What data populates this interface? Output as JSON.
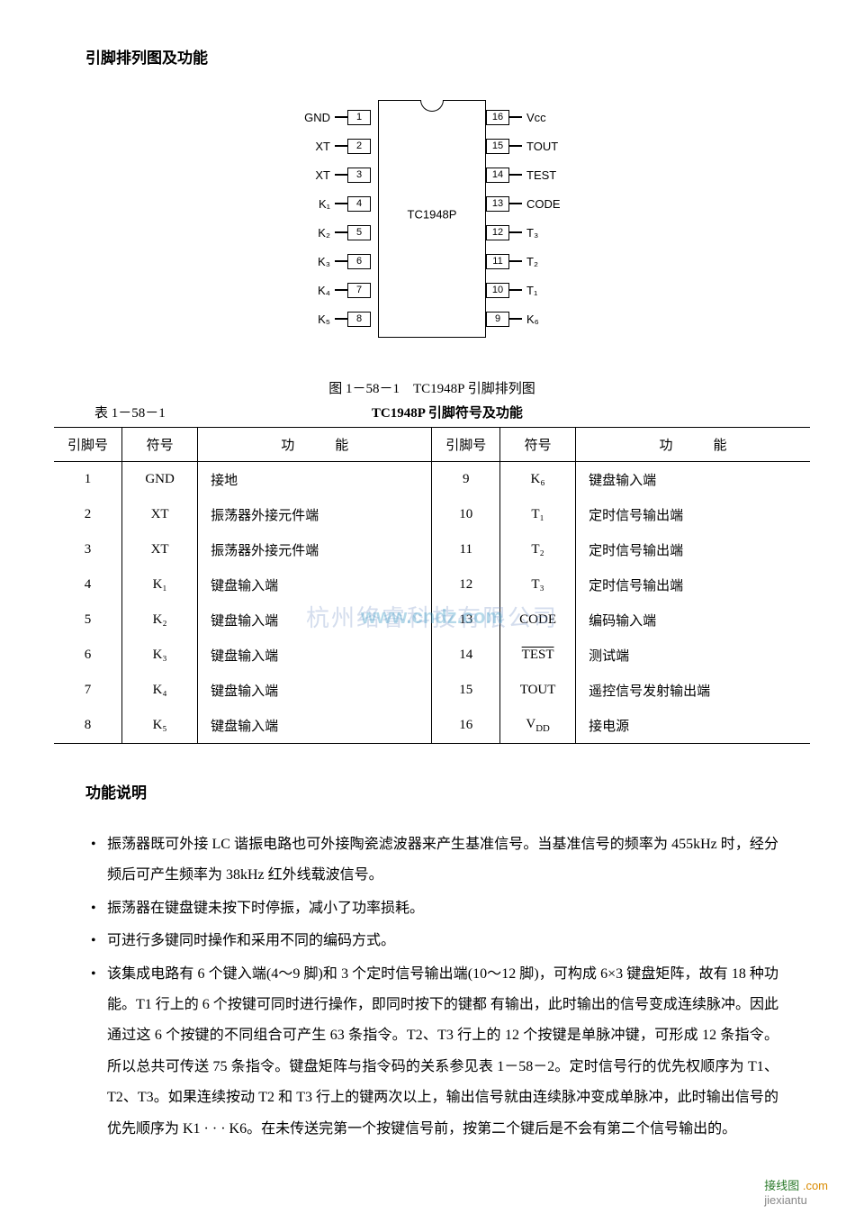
{
  "headings": {
    "pinout": "引脚排列图及功能",
    "funcdesc": "功能说明"
  },
  "chip": {
    "name": "TC1948P",
    "left_pins": [
      {
        "num": "1",
        "label": "GND"
      },
      {
        "num": "2",
        "label": "XT"
      },
      {
        "num": "3",
        "label": "XT"
      },
      {
        "num": "4",
        "label": "K₁"
      },
      {
        "num": "5",
        "label": "K₂"
      },
      {
        "num": "6",
        "label": "K₃"
      },
      {
        "num": "7",
        "label": "K₄"
      },
      {
        "num": "8",
        "label": "K₅"
      }
    ],
    "right_pins": [
      {
        "num": "16",
        "label": "Vcc"
      },
      {
        "num": "15",
        "label": "TOUT"
      },
      {
        "num": "14",
        "label": "TEST"
      },
      {
        "num": "13",
        "label": "CODE"
      },
      {
        "num": "12",
        "label": "T₃"
      },
      {
        "num": "11",
        "label": "T₂"
      },
      {
        "num": "10",
        "label": "T₁"
      },
      {
        "num": "9",
        "label": "K₆"
      }
    ]
  },
  "figure_caption": "图 1－58－1　TC1948P 引脚排列图",
  "table": {
    "number": "表 1－58－1",
    "title": "TC1948P 引脚符号及功能",
    "headers": {
      "pin": "引脚号",
      "sym": "符号",
      "fn_a": "功",
      "fn_b": "能"
    },
    "rows_left": [
      {
        "pin": "1",
        "sym": "GND",
        "fn": "接地"
      },
      {
        "pin": "2",
        "sym": "XT",
        "fn": "振荡器外接元件端"
      },
      {
        "pin": "3",
        "sym": "XT",
        "fn": "振荡器外接元件端"
      },
      {
        "pin": "4",
        "sym": "K₁",
        "fn": "键盘输入端"
      },
      {
        "pin": "5",
        "sym": "K₂",
        "fn": "键盘输入端"
      },
      {
        "pin": "6",
        "sym": "K₃",
        "fn": "键盘输入端"
      },
      {
        "pin": "7",
        "sym": "K₄",
        "fn": "键盘输入端"
      },
      {
        "pin": "8",
        "sym": "K₅",
        "fn": "键盘输入端"
      }
    ],
    "rows_right": [
      {
        "pin": "9",
        "sym": "K₆",
        "fn": "键盘输入端"
      },
      {
        "pin": "10",
        "sym": "T₁",
        "fn": "定时信号输出端"
      },
      {
        "pin": "11",
        "sym": "T₂",
        "fn": "定时信号输出端"
      },
      {
        "pin": "12",
        "sym": "T₃",
        "fn": "定时信号输出端"
      },
      {
        "pin": "13",
        "sym": "CODE",
        "fn": "编码输入端"
      },
      {
        "pin": "14",
        "sym": "TEST",
        "fn": "测试端",
        "overline": true
      },
      {
        "pin": "15",
        "sym": "TOUT",
        "fn": "遥控信号发射输出端"
      },
      {
        "pin": "16",
        "sym": "V_DD",
        "fn": "接电源",
        "vdd": true
      }
    ]
  },
  "bullets": [
    "振荡器既可外接 LC 谐振电路也可外接陶瓷滤波器来产生基准信号。当基准信号的频率为 455kHz 时，经分频后可产生频率为 38kHz 红外线载波信号。",
    "振荡器在键盘键未按下时停振，减小了功率损耗。",
    "可进行多键同时操作和采用不同的编码方式。",
    "该集成电路有 6 个键入端(4～9 脚)和 3 个定时信号输出端(10～12 脚)，可构成 6×3 键盘矩阵，故有 18 种功能。T1 行上的 6 个按键可同时进行操作，即同时按下的键都 有输出，此时输出的信号变成连续脉冲。因此通过这 6 个按键的不同组合可产生 63 条指令。T2、T3 行上的 12 个按键是单脉冲键，可形成 12 条指令。所以总共可传送 75 条指令。键盘矩阵与指令码的关系参见表 1－58－2。定时信号行的优先权顺序为 T1、T2、T3。如果连续按动 T2 和 T3 行上的键两次以上，输出信号就由连续脉冲变成单脉冲，此时输出信号的优先顺序为 K1 · · · K6。在未传送完第一个按键信号前，按第二个键后是不会有第二个信号输出的。"
  ],
  "watermarks": {
    "back": "杭州络睿科技有限公司",
    "front": "www.cndz.com"
  },
  "footer": {
    "a": "接线图",
    "b": ".com",
    "c": "jiexiantu"
  }
}
